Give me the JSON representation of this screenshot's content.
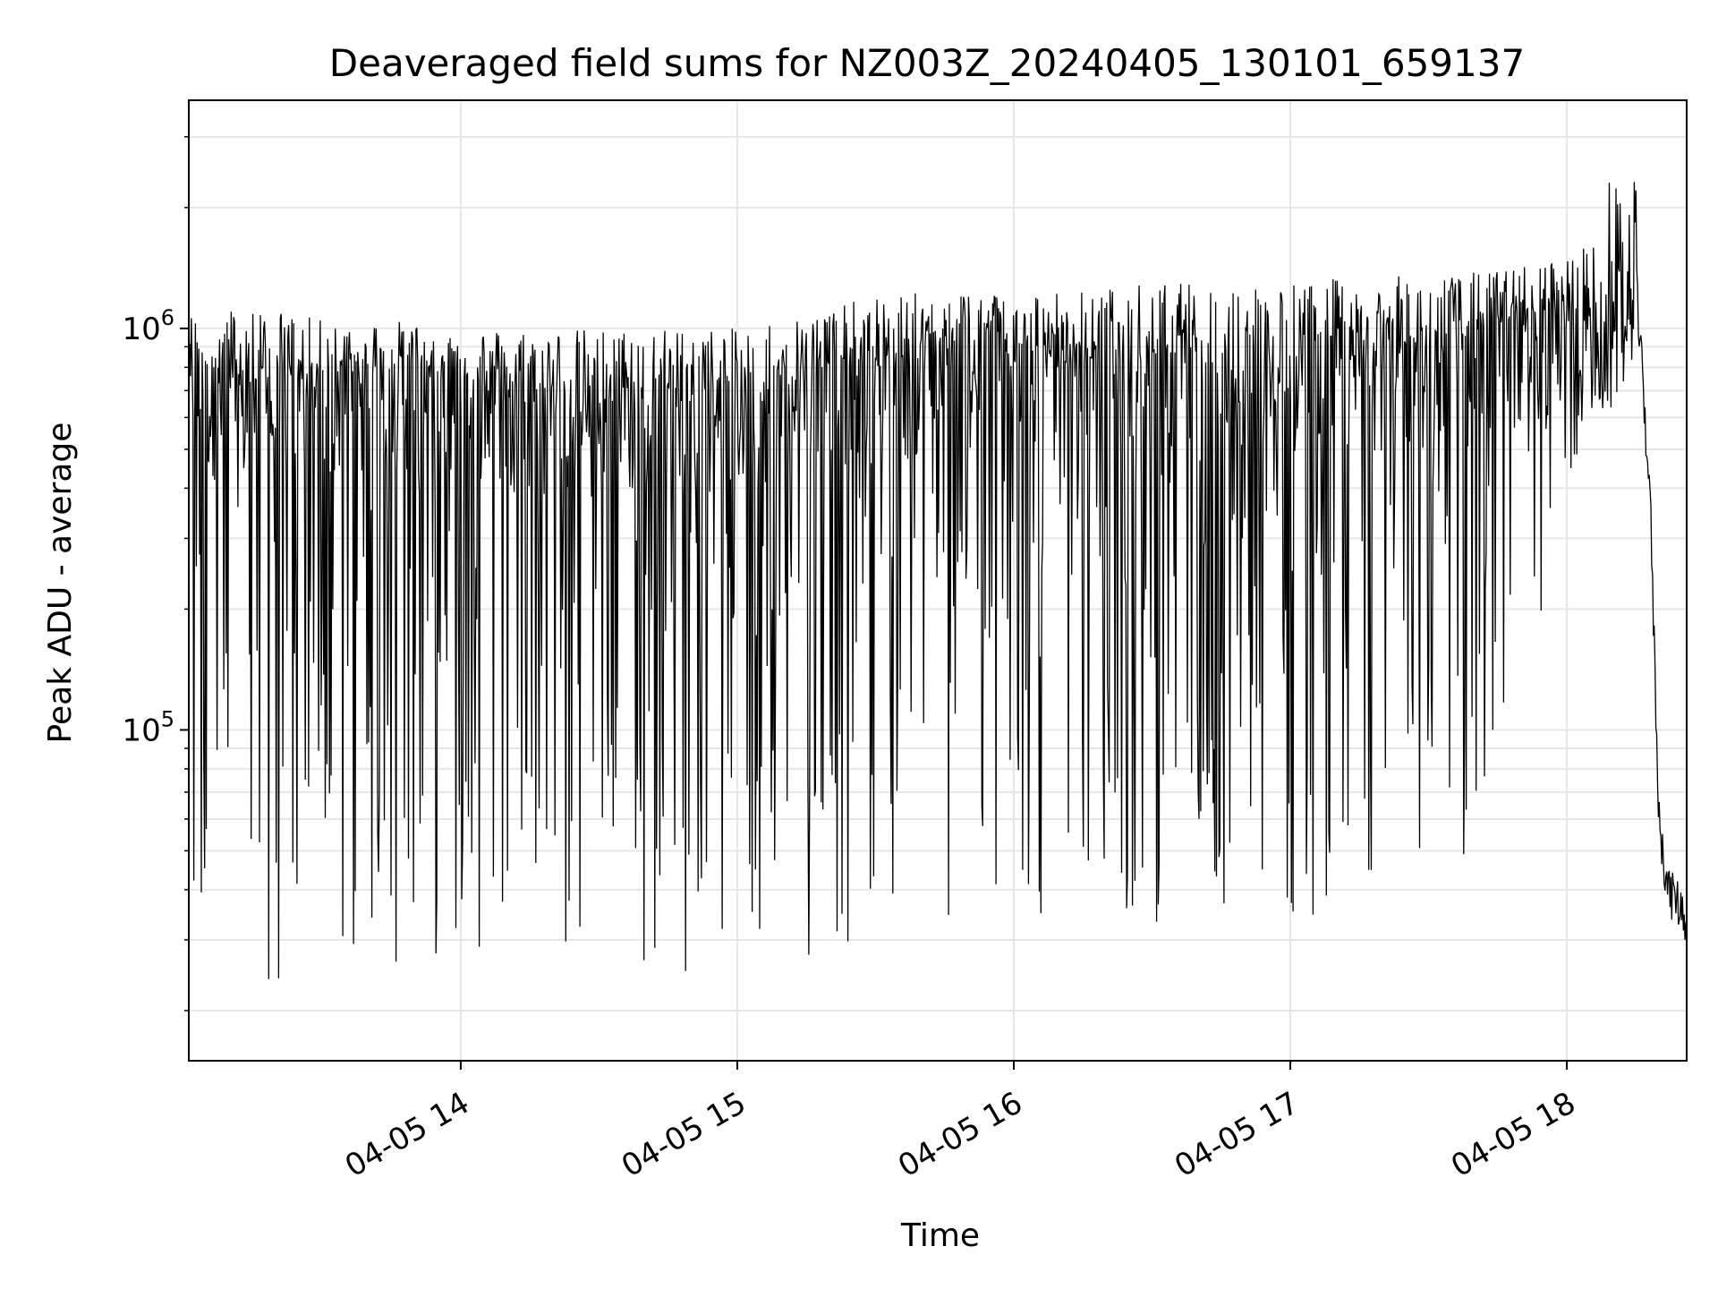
{
  "chart_data": {
    "type": "line",
    "title": "Deaveraged field sums for NZ003Z_20240405_130101_659137",
    "xlabel": "Time",
    "ylabel": "Peak ADU - average",
    "yscale": "log",
    "grid": true,
    "xlim": [
      "04-05 13:01",
      "04-05 18:26"
    ],
    "ylim": [
      15000,
      3700000
    ],
    "x_ticks": [
      {
        "label": "04-05 14",
        "value": "04-05 14:00"
      },
      {
        "label": "04-05 15",
        "value": "04-05 15:00"
      },
      {
        "label": "04-05 16",
        "value": "04-05 16:00"
      },
      {
        "label": "04-05 17",
        "value": "04-05 17:00"
      },
      {
        "label": "04-05 18",
        "value": "04-05 18:00"
      }
    ],
    "y_ticks": [
      {
        "base": "10",
        "exp": "5",
        "value": 100000
      },
      {
        "base": "10",
        "exp": "6",
        "value": 1000000
      }
    ],
    "series_color": "#000000",
    "series": [
      {
        "x": [
          "04-05 13:01",
          "04-05 13:15",
          "04-05 13:30",
          "04-05 13:45",
          "04-05 14:00",
          "04-05 14:15",
          "04-05 14:30",
          "04-05 14:45",
          "04-05 15:00",
          "04-05 15:15",
          "04-05 15:30",
          "04-05 15:45",
          "04-05 16:00",
          "04-05 16:15",
          "04-05 16:30",
          "04-05 16:45",
          "04-05 17:00",
          "04-05 17:15",
          "04-05 17:30",
          "04-05 17:45",
          "04-05 18:00",
          "04-05 18:05",
          "04-05 18:10",
          "04-05 18:15",
          "04-05 18:18",
          "04-05 18:20",
          "04-05 18:22",
          "04-05 18:24",
          "04-05 18:26"
        ],
        "max": [
          1100000,
          1150000,
          1050000,
          1050000,
          1000000,
          1000000,
          1000000,
          1000000,
          1000000,
          1100000,
          1200000,
          1250000,
          1250000,
          1250000,
          1300000,
          1300000,
          1300000,
          1350000,
          1350000,
          1400000,
          1500000,
          1700000,
          2500000,
          2600000,
          700000,
          300000,
          46000,
          42000,
          40000
        ],
        "min": [
          25000,
          22000,
          22000,
          25000,
          28000,
          28000,
          24000,
          23000,
          30000,
          27000,
          30000,
          30000,
          33000,
          32000,
          33000,
          32000,
          30000,
          45000,
          40000,
          45000,
          300000,
          600000,
          600000,
          900000,
          180000,
          30000,
          32000,
          30000,
          30000
        ],
        "typical": [
          800000,
          700000,
          750000,
          800000,
          750000,
          700000,
          650000,
          700000,
          700000,
          800000,
          800000,
          900000,
          900000,
          800000,
          850000,
          850000,
          850000,
          900000,
          900000,
          1000000,
          1100000,
          1000000,
          1100000,
          1300000,
          400000,
          60000,
          40000,
          38000,
          33000
        ]
      }
    ]
  }
}
